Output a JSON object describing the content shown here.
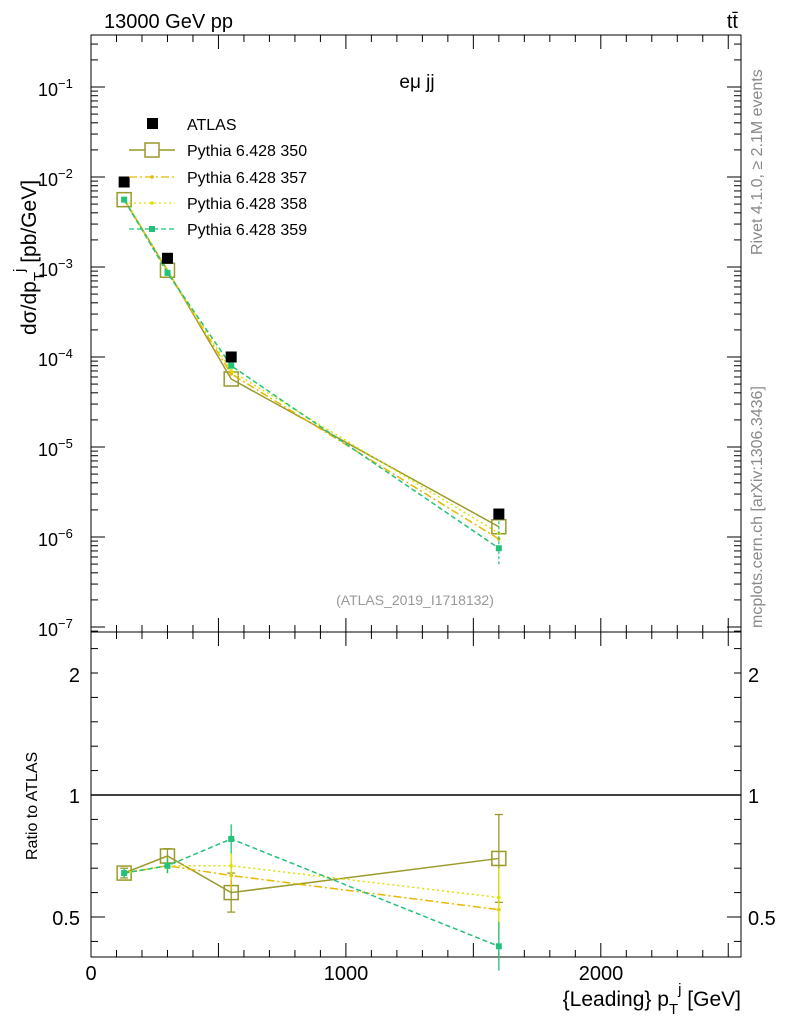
{
  "chart_data": {
    "type": "line",
    "header_left": "13000 GeV pp",
    "header_right": "tt̄",
    "panel_label": "eμ jj",
    "analysis_label": "(ATLAS_2019_I1718132)",
    "side_text_top": "Rivet 4.1.0, ≥ 2.1M events",
    "side_text_bottom": "mcplots.cern.ch [arXiv:1306.3436]",
    "ylabel_top": "dσ/dp_T^j [pb/GeV]",
    "ylabel_bottom": "Ratio to ATLAS",
    "xlabel": "{Leading} p_T^j [GeV]",
    "xlim": [
      0,
      2550
    ],
    "ylim_top": [
      1e-07,
      0.4
    ],
    "ylim_bottom": [
      0.35,
      2.3
    ],
    "x_ticks": [
      "0",
      "1000",
      "2000"
    ],
    "y_ticks_top": [
      "10^-7",
      "10^-6",
      "10^-5",
      "10^-4",
      "10^-3",
      "10^-2",
      "10^-1"
    ],
    "y_ticks_bottom": [
      "0.5",
      "1",
      "2"
    ],
    "x": [
      130,
      300,
      550,
      1600
    ],
    "atlas": {
      "name": "ATLAS",
      "values": [
        0.0088,
        0.00125,
        0.0001,
        1.8e-06
      ]
    },
    "series": [
      {
        "name": "Pythia 6.428 350",
        "color": "#9a9a2a",
        "style": "solid",
        "marker": "open-square",
        "values": [
          0.0056,
          0.00092,
          5.7e-05,
          1.3e-06
        ],
        "ratio": [
          0.68,
          0.75,
          0.6,
          0.74
        ],
        "ratio_err": [
          0.02,
          0.03,
          0.08,
          0.18
        ]
      },
      {
        "name": "Pythia 6.428 357",
        "color": "#e6b800",
        "style": "dashdot",
        "marker": "small-dot",
        "values": [
          0.0057,
          0.00088,
          6.5e-05,
          9.5e-07
        ],
        "ratio": [
          0.68,
          0.71,
          0.67,
          0.53
        ],
        "ratio_err": [
          0.02,
          0.03,
          0.06,
          0.12
        ]
      },
      {
        "name": "Pythia 6.428 358",
        "color": "#e0e000",
        "style": "dotted",
        "marker": "small-dot",
        "values": [
          0.0058,
          0.0009,
          7e-05,
          1.1e-06
        ],
        "ratio": [
          0.68,
          0.71,
          0.71,
          0.58
        ],
        "ratio_err": [
          0.02,
          0.03,
          0.06,
          0.12
        ]
      },
      {
        "name": "Pythia 6.428 359",
        "color": "#22c27a",
        "style": "dashed",
        "marker": "filled-square",
        "values": [
          0.0056,
          0.00086,
          8e-05,
          7.5e-07
        ],
        "ratio": [
          0.68,
          0.71,
          0.82,
          0.38
        ],
        "ratio_err": [
          0.02,
          0.03,
          0.06,
          0.1
        ]
      }
    ]
  }
}
